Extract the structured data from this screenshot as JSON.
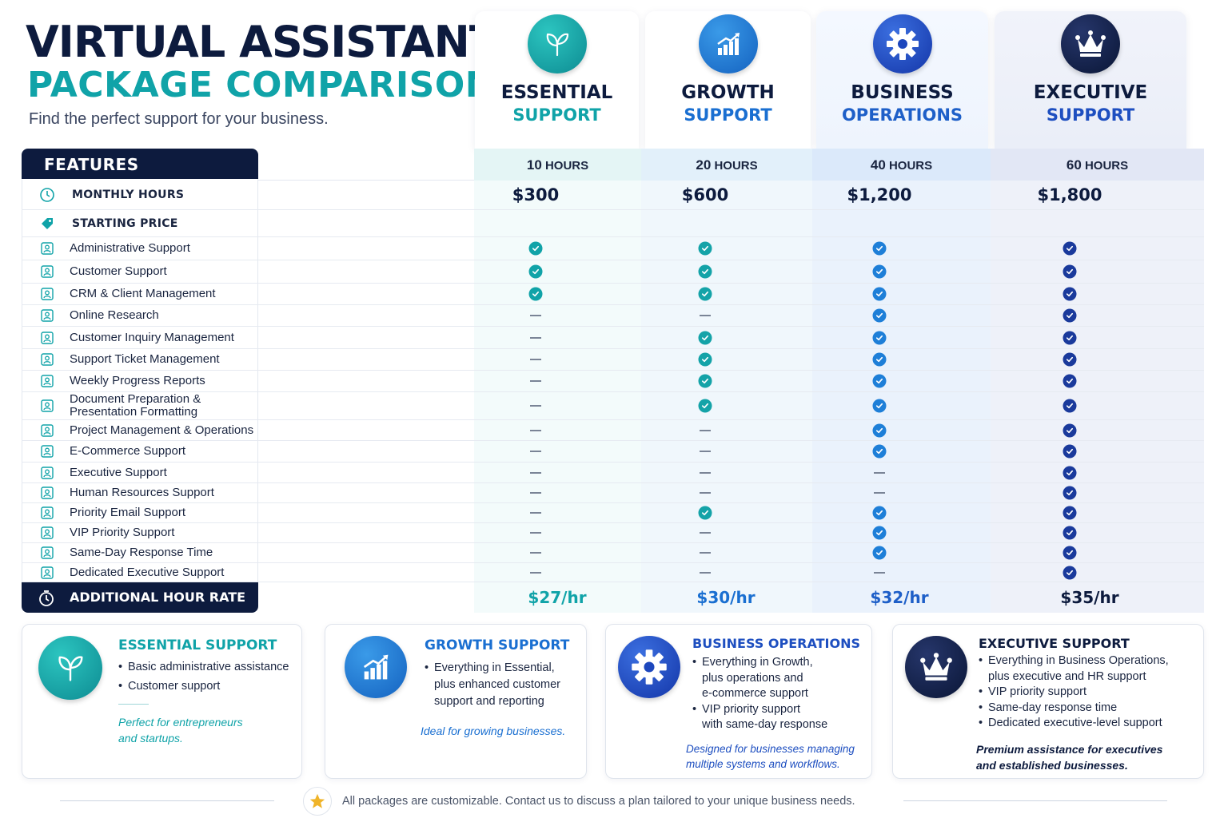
{
  "header": {
    "title_line1": "VIRTUAL ASSISTANT",
    "title_line2": "PACKAGE COMPARISON",
    "subtitle": "Find the perfect support for your business."
  },
  "colors": {
    "navy": "#0d1b3e",
    "teal": "#10a3a8",
    "blue": "#1f6fd0",
    "royal": "#1e4fc0",
    "dark_navy": "#0f1e45"
  },
  "plans": [
    {
      "name": "ESSENTIAL",
      "sub": "SUPPORT",
      "icon": "leaf-icon",
      "hours_num": "10",
      "hours_unit": "HOURS",
      "price": "$300",
      "rate": "$27/hr"
    },
    {
      "name": "GROWTH",
      "sub": "SUPPORT",
      "icon": "growth-chart-icon",
      "hours_num": "20",
      "hours_unit": "HOURS",
      "price": "$600",
      "rate": "$30/hr"
    },
    {
      "name": "BUSINESS",
      "sub": "OPERATIONS",
      "icon": "gear-icon",
      "hours_num": "40",
      "hours_unit": "HOURS",
      "price": "$1,200",
      "rate": "$32/hr"
    },
    {
      "name": "EXECUTIVE",
      "sub": "SUPPORT",
      "icon": "crown-icon",
      "hours_num": "60",
      "hours_unit": "HOURS",
      "price": "$1,800",
      "rate": "$35/hr"
    }
  ],
  "table": {
    "features_header": "FEATURES",
    "monthly_hours_label": "MONTHLY HOURS",
    "starting_price_label": "STARTING PRICE",
    "additional_rate_label": "ADDITIONAL HOUR RATE",
    "features": [
      {
        "label": "Administrative Support",
        "icon": "people-icon",
        "included": [
          true,
          true,
          true,
          true
        ]
      },
      {
        "label": "Customer Support",
        "icon": "people-icon",
        "included": [
          true,
          true,
          true,
          true
        ]
      },
      {
        "label": "CRM & Client Management",
        "icon": "contacts-icon",
        "included": [
          true,
          true,
          true,
          true
        ]
      },
      {
        "label": "Online Research",
        "icon": "search-document-icon",
        "included": [
          false,
          false,
          true,
          true
        ]
      },
      {
        "label": "Customer Inquiry Management",
        "icon": "inquiry-icon",
        "included": [
          false,
          true,
          true,
          true
        ]
      },
      {
        "label": "Support Ticket Management",
        "icon": "ticket-icon",
        "included": [
          false,
          true,
          true,
          true
        ]
      },
      {
        "label": "Weekly Progress Reports",
        "icon": "report-icon",
        "included": [
          false,
          true,
          true,
          true
        ]
      },
      {
        "label": "Document Preparation & Presentation Formatting",
        "icon": "document-icon",
        "included": [
          false,
          true,
          true,
          true
        ]
      },
      {
        "label": "Project Management & Operations",
        "icon": "box-icon",
        "included": [
          false,
          false,
          true,
          true
        ]
      },
      {
        "label": "E-Commerce Support",
        "icon": "ecommerce-icon",
        "included": [
          false,
          false,
          true,
          true
        ]
      },
      {
        "label": "Executive Support",
        "icon": "people-icon",
        "included": [
          false,
          false,
          false,
          true
        ]
      },
      {
        "label": "Human Resources Support",
        "icon": "people-icon",
        "included": [
          false,
          false,
          false,
          true
        ]
      },
      {
        "label": "Priority Email Support",
        "icon": "email-icon",
        "included": [
          false,
          true,
          true,
          true
        ]
      },
      {
        "label": "VIP Priority Support",
        "icon": "vip-icon",
        "included": [
          false,
          false,
          true,
          true
        ]
      },
      {
        "label": "Same-Day Response Time",
        "icon": "clock-icon",
        "included": [
          false,
          false,
          true,
          true
        ]
      },
      {
        "label": "Dedicated Executive Support",
        "icon": "user-icon",
        "included": [
          false,
          false,
          false,
          true
        ]
      }
    ]
  },
  "cards": [
    {
      "title": "ESSENTIAL SUPPORT",
      "bullets": [
        "Basic administrative assistance",
        "Customer support"
      ],
      "tagline_1": "Perfect for entrepreneurs",
      "tagline_2": "and startups."
    },
    {
      "title": "GROWTH SUPPORT",
      "bullets": [
        "Everything in Essential,",
        "plus enhanced customer",
        "support and reporting"
      ],
      "tagline_1": "Ideal for growing businesses.",
      "tagline_2": ""
    },
    {
      "title": "BUSINESS OPERATIONS",
      "bullets": [
        "Everything in Growth,",
        "plus operations and",
        "e-commerce support",
        "VIP priority support",
        "with same-day response"
      ],
      "tagline_1": "Designed for businesses managing",
      "tagline_2": "multiple systems and workflows."
    },
    {
      "title": "EXECUTIVE SUPPORT",
      "bullets": [
        "Everything in Business Operations,",
        "plus executive and HR support",
        "VIP priority support",
        "Same-day response time",
        "Dedicated executive-level support"
      ],
      "tagline_1": "Premium assistance for executives",
      "tagline_2": "and established businesses."
    }
  ],
  "footer": {
    "text": "All packages are customizable. Contact us to discuss a plan tailored to your unique business needs.",
    "icon": "star-icon"
  }
}
